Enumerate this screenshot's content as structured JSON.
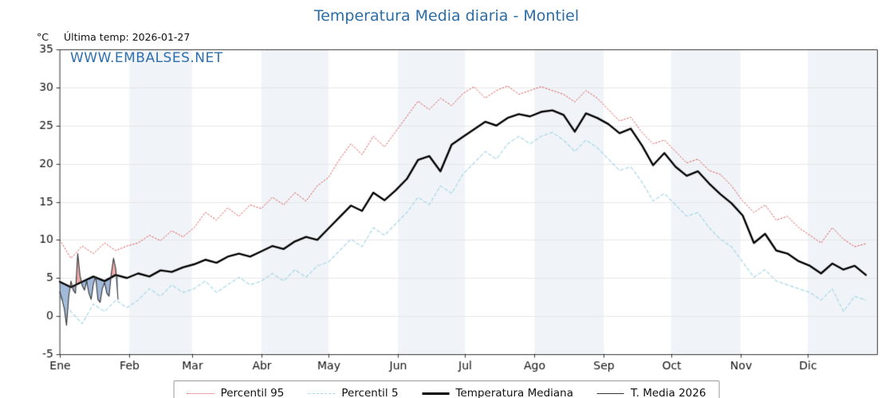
{
  "axis_unit": "°C",
  "last_temp_label": "Última temp: 2026-01-27",
  "watermark": "WWW.EMBALSES.NET",
  "colors": {
    "title": "#2c6da5",
    "watermark": "#2e6fad",
    "percentil95": "#dd4b4b",
    "percentil5": "#a8d7e6",
    "mediana": "#000000",
    "media2026": "#333333",
    "band": "#f0f4f8",
    "grid": "#e6e6e6",
    "frame": "#333333",
    "fill_above": "rgba(225,110,110,0.6)",
    "fill_below": "rgba(95,135,190,0.6)"
  },
  "legend": [
    {
      "label": "Percentil 95",
      "color": "#dd4b4b",
      "style": "dotted",
      "width": 1
    },
    {
      "label": "Percentil 5",
      "color": "#a8d7e6",
      "style": "dashed",
      "width": 1
    },
    {
      "label": "Temperatura Mediana",
      "color": "#000000",
      "style": "solid",
      "width": 3
    },
    {
      "label": "T. Media 2026",
      "color": "#333333",
      "style": "solid",
      "width": 1
    }
  ],
  "chart_data": {
    "type": "line",
    "title": "Temperatura Media diaria - Montiel",
    "xlabel": "",
    "ylabel": "°C",
    "ylim": [
      -5,
      35
    ],
    "xlim_days": [
      0,
      365
    ],
    "y_ticks": [
      -5,
      0,
      5,
      10,
      15,
      20,
      25,
      30,
      35
    ],
    "x_tick_days": [
      0,
      31,
      59,
      90,
      120,
      151,
      181,
      212,
      243,
      273,
      304,
      334
    ],
    "x_tick_labels": [
      "Ene",
      "Feb",
      "Mar",
      "Abr",
      "May",
      "Jun",
      "Jul",
      "Ago",
      "Sep",
      "Oct",
      "Nov",
      "Dic"
    ],
    "shaded_month_indices": [
      1,
      3,
      5,
      7,
      9,
      11
    ],
    "legend_position": "bottom",
    "grid": true,
    "series": [
      {
        "name": "Percentil 95",
        "x": [
          0,
          5,
          10,
          15,
          20,
          25,
          30,
          35,
          40,
          45,
          50,
          55,
          60,
          65,
          70,
          75,
          80,
          85,
          90,
          95,
          100,
          105,
          110,
          115,
          120,
          125,
          130,
          135,
          140,
          145,
          150,
          155,
          160,
          165,
          170,
          175,
          180,
          185,
          190,
          195,
          200,
          205,
          210,
          215,
          220,
          225,
          230,
          235,
          240,
          245,
          250,
          255,
          260,
          265,
          270,
          275,
          280,
          285,
          290,
          295,
          300,
          305,
          310,
          315,
          320,
          325,
          330,
          335,
          340,
          345,
          350,
          355,
          360
        ],
        "values": [
          10.0,
          7.6,
          9.2,
          8.2,
          9.6,
          8.6,
          9.2,
          9.6,
          10.6,
          9.9,
          11.2,
          10.4,
          11.6,
          13.6,
          12.6,
          14.2,
          13.1,
          14.6,
          14.1,
          15.6,
          14.6,
          16.2,
          15.1,
          17.1,
          18.2,
          20.6,
          22.6,
          21.2,
          23.6,
          22.2,
          24.2,
          26.2,
          28.2,
          27.1,
          28.6,
          27.6,
          29.2,
          30.1,
          28.6,
          29.6,
          30.2,
          29.1,
          29.6,
          30.1,
          29.6,
          29.1,
          28.1,
          29.6,
          28.6,
          27.1,
          25.6,
          26.1,
          24.1,
          22.6,
          23.1,
          21.6,
          20.1,
          20.6,
          19.1,
          18.6,
          17.1,
          15.1,
          13.6,
          14.6,
          12.6,
          13.1,
          11.6,
          10.6,
          9.6,
          11.6,
          10.1,
          9.1,
          9.5
        ]
      },
      {
        "name": "Percentil 5",
        "x": [
          0,
          5,
          10,
          15,
          20,
          25,
          30,
          35,
          40,
          45,
          50,
          55,
          60,
          65,
          70,
          75,
          80,
          85,
          90,
          95,
          100,
          105,
          110,
          115,
          120,
          125,
          130,
          135,
          140,
          145,
          150,
          155,
          160,
          165,
          170,
          175,
          180,
          185,
          190,
          195,
          200,
          205,
          210,
          215,
          220,
          225,
          230,
          235,
          240,
          245,
          250,
          255,
          260,
          265,
          270,
          275,
          280,
          285,
          290,
          295,
          300,
          305,
          310,
          315,
          320,
          325,
          330,
          335,
          340,
          345,
          350,
          355,
          360
        ],
        "values": [
          2.5,
          0.6,
          -1.0,
          1.6,
          0.6,
          2.1,
          1.1,
          2.1,
          3.6,
          2.6,
          4.1,
          3.1,
          3.6,
          4.6,
          3.1,
          4.1,
          5.1,
          4.1,
          4.6,
          5.6,
          4.6,
          6.1,
          5.1,
          6.6,
          7.1,
          8.6,
          10.1,
          9.1,
          11.6,
          10.6,
          12.1,
          13.6,
          15.6,
          14.6,
          17.1,
          16.1,
          18.6,
          20.1,
          21.6,
          20.6,
          22.6,
          23.6,
          22.6,
          23.6,
          24.1,
          23.1,
          21.6,
          23.1,
          22.1,
          20.6,
          19.1,
          19.6,
          17.6,
          15.1,
          16.1,
          14.6,
          13.1,
          13.6,
          11.6,
          10.1,
          9.1,
          7.1,
          5.1,
          6.1,
          4.6,
          4.1,
          3.6,
          3.1,
          2.1,
          3.6,
          0.6,
          2.6,
          2.1
        ]
      },
      {
        "name": "Temperatura Mediana",
        "x": [
          0,
          5,
          10,
          15,
          20,
          25,
          30,
          35,
          40,
          45,
          50,
          55,
          60,
          65,
          70,
          75,
          80,
          85,
          90,
          95,
          100,
          105,
          110,
          115,
          120,
          125,
          130,
          135,
          140,
          145,
          150,
          155,
          160,
          165,
          170,
          175,
          180,
          185,
          190,
          195,
          200,
          205,
          210,
          215,
          220,
          225,
          230,
          235,
          240,
          245,
          250,
          255,
          260,
          265,
          270,
          275,
          280,
          285,
          290,
          295,
          300,
          305,
          310,
          315,
          320,
          325,
          330,
          335,
          340,
          345,
          350,
          355,
          360
        ],
        "values": [
          4.5,
          3.8,
          4.5,
          5.2,
          4.6,
          5.4,
          5.0,
          5.6,
          5.2,
          6.0,
          5.8,
          6.4,
          6.8,
          7.4,
          7.0,
          7.8,
          8.2,
          7.8,
          8.5,
          9.2,
          8.8,
          9.8,
          10.4,
          10.0,
          11.5,
          13.0,
          14.5,
          13.8,
          16.2,
          15.2,
          16.5,
          18.0,
          20.5,
          21.0,
          19.0,
          22.5,
          23.5,
          24.5,
          25.5,
          25.0,
          26.0,
          26.5,
          26.2,
          26.8,
          27.0,
          26.4,
          24.2,
          26.6,
          26.0,
          25.2,
          24.0,
          24.6,
          22.4,
          19.8,
          21.4,
          19.6,
          18.4,
          19.0,
          17.4,
          16.0,
          14.8,
          13.2,
          9.6,
          10.8,
          8.6,
          8.2,
          7.2,
          6.6,
          5.6,
          6.9,
          6.1,
          6.6,
          5.4
        ]
      },
      {
        "name": "T. Media 2026",
        "x": [
          0,
          1,
          2,
          3,
          4,
          5,
          6,
          7,
          8,
          9,
          10,
          11,
          12,
          13,
          14,
          15,
          16,
          17,
          18,
          19,
          20,
          21,
          22,
          23,
          24,
          25,
          26
        ],
        "values": [
          3.2,
          2.2,
          1.0,
          -1.2,
          2.6,
          4.6,
          3.4,
          3.0,
          8.2,
          5.4,
          4.0,
          3.4,
          4.6,
          3.0,
          2.2,
          4.2,
          5.2,
          2.2,
          1.8,
          3.6,
          4.4,
          3.0,
          2.6,
          5.6,
          7.6,
          6.2,
          2.2
        ]
      }
    ]
  }
}
